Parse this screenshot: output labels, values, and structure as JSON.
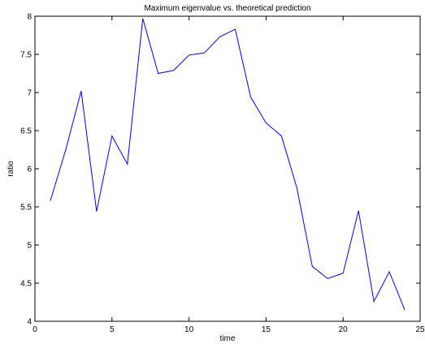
{
  "chart_data": {
    "type": "line",
    "title": "Maximum eigenvalue vs. theoretical prediction",
    "xlabel": "time",
    "ylabel": "ratio",
    "xlim": [
      0,
      25
    ],
    "ylim": [
      4,
      8
    ],
    "xticks": [
      0,
      5,
      10,
      15,
      20,
      25
    ],
    "yticks": [
      4,
      4.5,
      5,
      5.5,
      6,
      6.5,
      7,
      7.5,
      8
    ],
    "grid": false,
    "line_color": "#0000ff",
    "series": [
      {
        "x": [
          1,
          2,
          3,
          4,
          5,
          6,
          7,
          8,
          9,
          10,
          11,
          12,
          13,
          14,
          15,
          16,
          17,
          18,
          19,
          20,
          21,
          22,
          23,
          24
        ],
        "values": [
          5.58,
          6.25,
          7.02,
          5.44,
          6.43,
          6.06,
          7.97,
          7.25,
          7.29,
          7.49,
          7.52,
          7.73,
          7.83,
          6.94,
          6.6,
          6.43,
          5.75,
          4.72,
          4.56,
          4.63,
          5.45,
          4.26,
          4.65,
          4.15
        ]
      }
    ]
  }
}
